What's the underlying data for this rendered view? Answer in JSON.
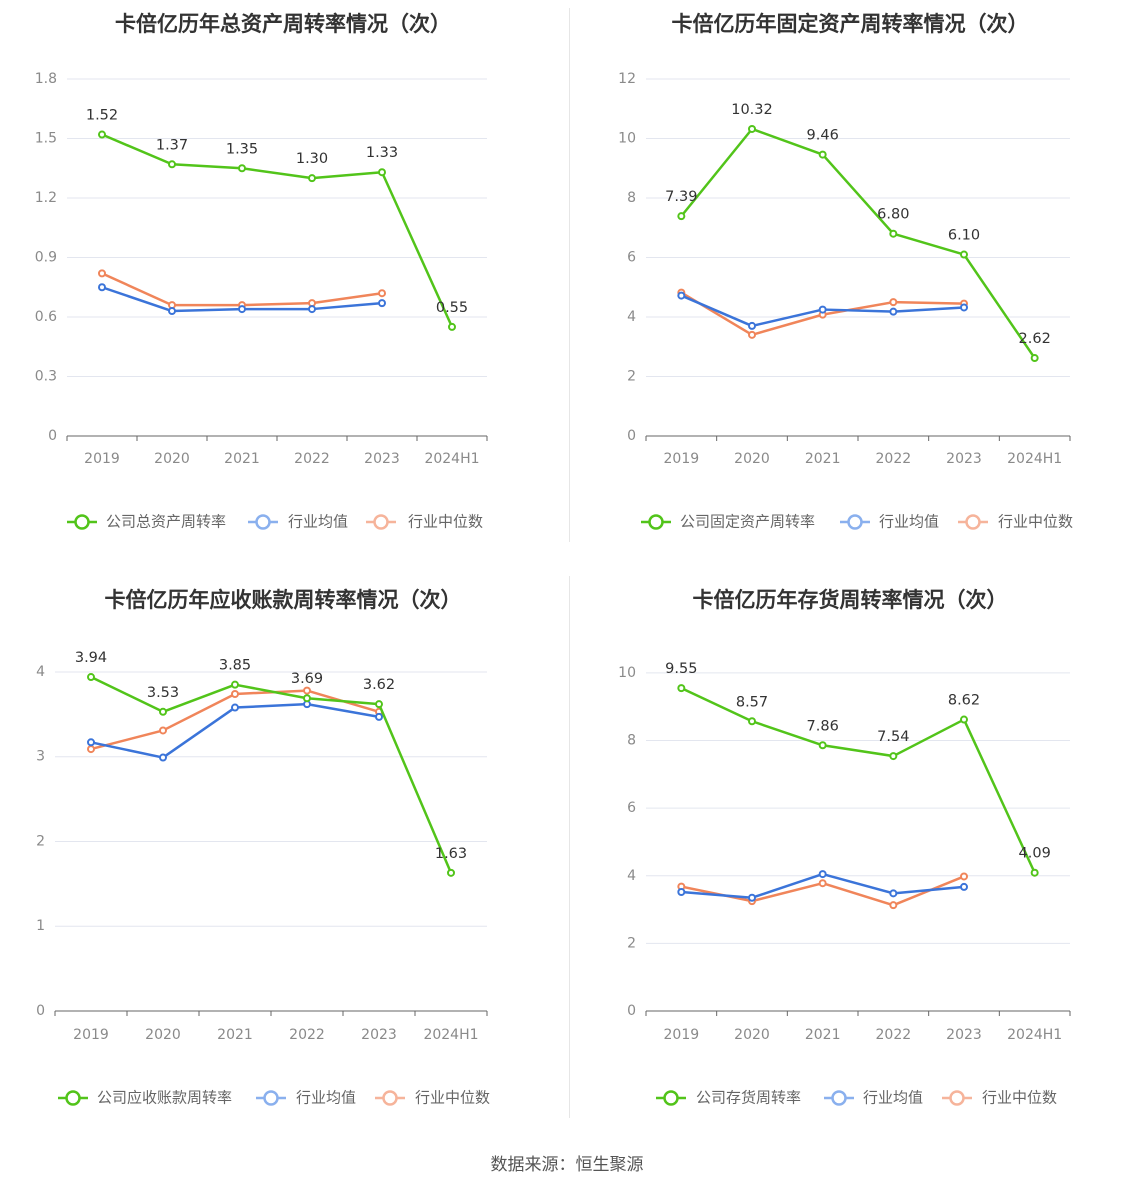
{
  "colors": {
    "company": "#52c41a",
    "avg": "#3b74d9",
    "median": "#f0855a",
    "avg_legend": "#8ab0ee",
    "median_legend": "#f6b49b",
    "grid": "#e3e6ef",
    "axis": "#666666"
  },
  "footer": "数据来源：恒生聚源",
  "chart_data": [
    {
      "type": "line",
      "title": "卡倍亿历年总资产周转率情况（次）",
      "categories": [
        "2019",
        "2020",
        "2021",
        "2022",
        "2023",
        "2024H1"
      ],
      "ylim": [
        0,
        1.8
      ],
      "yticks": [
        "0",
        "0.3",
        "0.6",
        "0.9",
        "1.2",
        "1.5",
        "1.8"
      ],
      "legend_position": "bottom",
      "series": [
        {
          "name": "公司总资产周转率",
          "role": "company",
          "values": [
            1.52,
            1.37,
            1.35,
            1.3,
            1.33,
            0.55
          ],
          "labels": [
            "1.52",
            "1.37",
            "1.35",
            "1.30",
            "1.33",
            "0.55"
          ]
        },
        {
          "name": "行业均值",
          "role": "avg",
          "values": [
            0.75,
            0.63,
            0.64,
            0.64,
            0.67,
            null
          ]
        },
        {
          "name": "行业中位数",
          "role": "median",
          "values": [
            0.82,
            0.66,
            0.66,
            0.67,
            0.72,
            null
          ]
        }
      ]
    },
    {
      "type": "line",
      "title": "卡倍亿历年固定资产周转率情况（次）",
      "categories": [
        "2019",
        "2020",
        "2021",
        "2022",
        "2023",
        "2024H1"
      ],
      "ylim": [
        0,
        12
      ],
      "yticks": [
        "0",
        "2",
        "4",
        "6",
        "8",
        "10",
        "12"
      ],
      "legend_position": "bottom",
      "series": [
        {
          "name": "公司固定资产周转率",
          "role": "company",
          "values": [
            7.39,
            10.32,
            9.46,
            6.8,
            6.1,
            2.62
          ],
          "labels": [
            "7.39",
            "10.32",
            "9.46",
            "6.80",
            "6.10",
            "2.62"
          ]
        },
        {
          "name": "行业均值",
          "role": "avg",
          "values": [
            4.72,
            3.7,
            4.25,
            4.18,
            4.32,
            null
          ]
        },
        {
          "name": "行业中位数",
          "role": "median",
          "values": [
            4.82,
            3.4,
            4.08,
            4.5,
            4.45,
            null
          ]
        }
      ]
    },
    {
      "type": "line",
      "title": "卡倍亿历年应收账款周转率情况（次）",
      "categories": [
        "2019",
        "2020",
        "2021",
        "2022",
        "2023",
        "2024H1"
      ],
      "ylim": [
        0,
        4.2
      ],
      "yticks": [
        "0",
        "1",
        "2",
        "3",
        "4"
      ],
      "legend_position": "bottom",
      "series": [
        {
          "name": "公司应收账款周转率",
          "role": "company",
          "values": [
            3.94,
            3.53,
            3.85,
            3.69,
            3.62,
            1.63
          ],
          "labels": [
            "3.94",
            "3.53",
            "3.85",
            "3.69",
            "3.62",
            "1.63"
          ]
        },
        {
          "name": "行业均值",
          "role": "avg",
          "values": [
            3.17,
            2.99,
            3.58,
            3.62,
            3.47,
            null
          ]
        },
        {
          "name": "行业中位数",
          "role": "median",
          "values": [
            3.09,
            3.31,
            3.74,
            3.78,
            3.53,
            null
          ]
        }
      ]
    },
    {
      "type": "line",
      "title": "卡倍亿历年存货周转率情况（次）",
      "categories": [
        "2019",
        "2020",
        "2021",
        "2022",
        "2023",
        "2024H1"
      ],
      "ylim": [
        0,
        10.5
      ],
      "yticks": [
        "0",
        "2",
        "4",
        "6",
        "8",
        "10"
      ],
      "legend_position": "bottom",
      "series": [
        {
          "name": "公司存货周转率",
          "role": "company",
          "values": [
            9.55,
            8.57,
            7.86,
            7.54,
            8.62,
            4.09
          ],
          "labels": [
            "9.55",
            "8.57",
            "7.86",
            "7.54",
            "8.62",
            "4.09"
          ]
        },
        {
          "name": "行业均值",
          "role": "avg",
          "values": [
            3.52,
            3.35,
            4.05,
            3.48,
            3.67,
            null
          ]
        },
        {
          "name": "行业中位数",
          "role": "median",
          "values": [
            3.68,
            3.25,
            3.78,
            3.13,
            3.98,
            null
          ]
        }
      ]
    }
  ]
}
